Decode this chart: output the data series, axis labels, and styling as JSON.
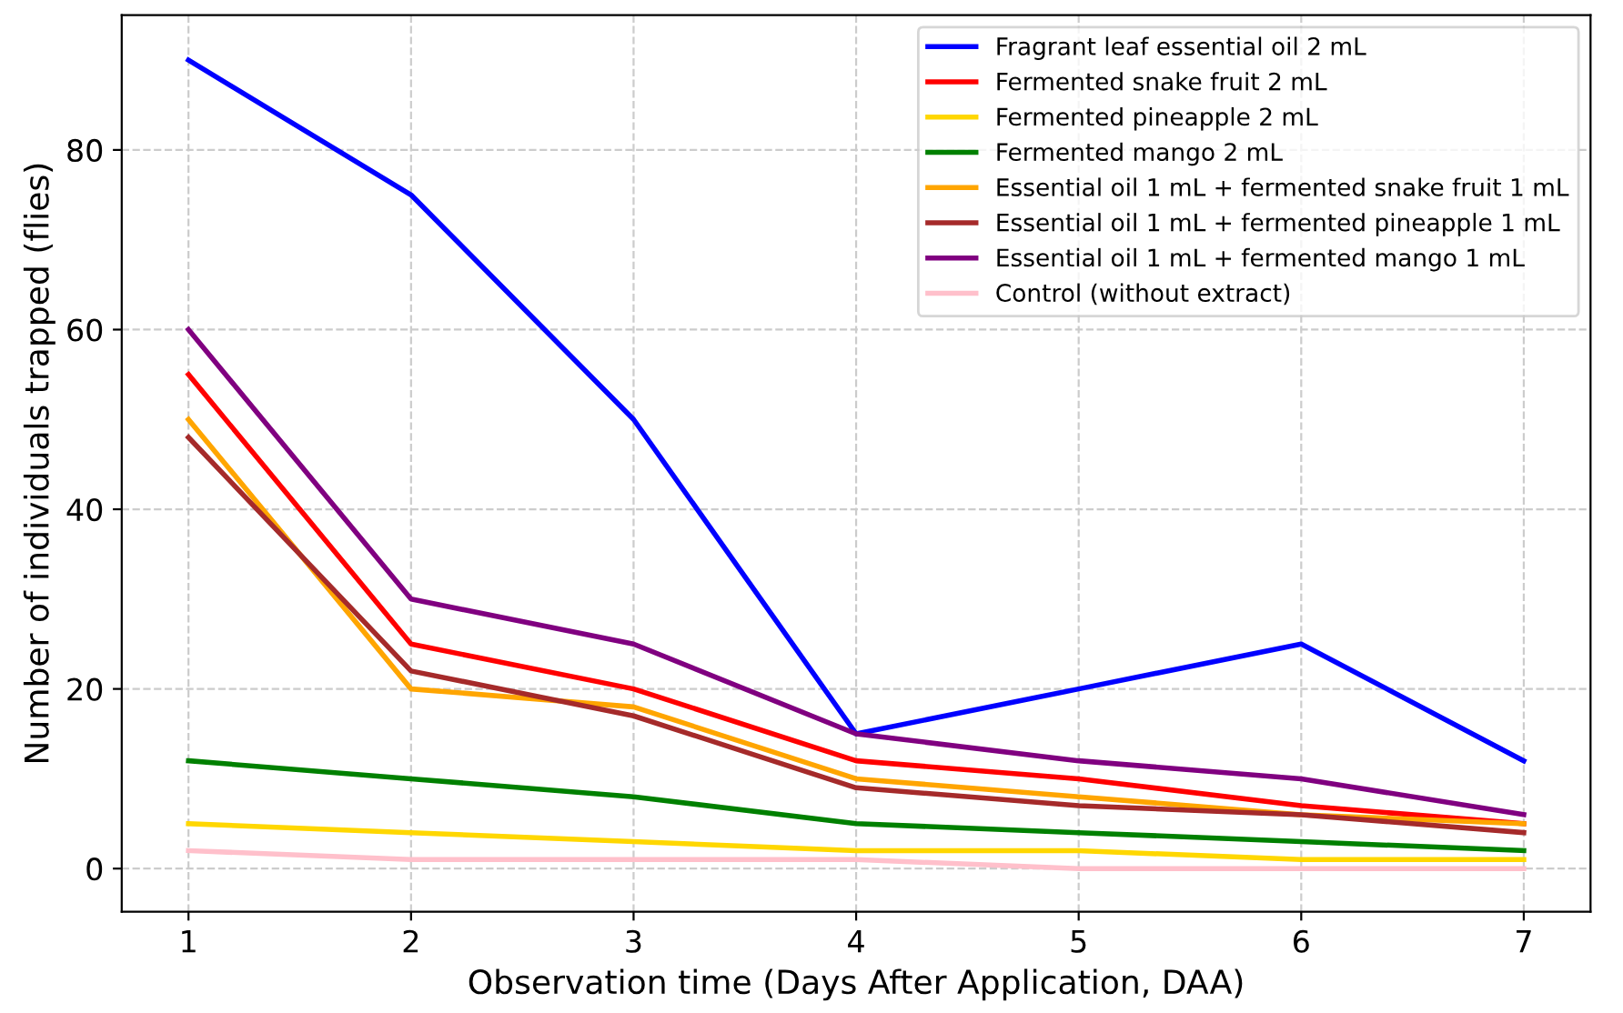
{
  "chart_data": {
    "type": "line",
    "xlabel": "Observation time (Days After Application, DAA)",
    "ylabel": "Number of individuals trapped (flies)",
    "x": [
      1,
      2,
      3,
      4,
      5,
      6,
      7
    ],
    "xlim": [
      0.7,
      7.3
    ],
    "xticks": [
      1,
      2,
      3,
      4,
      5,
      6,
      7
    ],
    "ylim": [
      -4.8,
      95
    ],
    "yticks": [
      0,
      20,
      40,
      60,
      80
    ],
    "grid": true,
    "legend": "top right",
    "line_style": "solid",
    "marker": "none",
    "series": [
      {
        "name": "Fragrant leaf essential oil 2 mL",
        "color": "#0000ff",
        "values": [
          90,
          75,
          50,
          15,
          20,
          25,
          12
        ]
      },
      {
        "name": "Fermented snake fruit 2 mL",
        "color": "#ff0000",
        "values": [
          55,
          25,
          20,
          12,
          10,
          7,
          5
        ]
      },
      {
        "name": "Fermented pineapple 2 mL",
        "color": "#ffd700",
        "values": [
          5,
          4,
          3,
          2,
          2,
          1,
          1
        ]
      },
      {
        "name": "Fermented mango 2 mL",
        "color": "#008000",
        "values": [
          12,
          10,
          8,
          5,
          4,
          3,
          2
        ]
      },
      {
        "name": "Essential oil 1 mL + fermented snake fruit 1 mL",
        "color": "#ffa500",
        "values": [
          50,
          20,
          18,
          10,
          8,
          6,
          5
        ]
      },
      {
        "name": "Essential oil 1 mL + fermented pineapple 1 mL",
        "color": "#a52a2a",
        "values": [
          48,
          22,
          17,
          9,
          7,
          6,
          4
        ]
      },
      {
        "name": "Essential oil 1 mL + fermented mango 1 mL",
        "color": "#800080",
        "values": [
          60,
          30,
          25,
          15,
          12,
          10,
          6
        ]
      },
      {
        "name": "Control (without extract)",
        "color": "#ffc0cb",
        "values": [
          2,
          1,
          1,
          1,
          0,
          0,
          0
        ]
      }
    ]
  }
}
